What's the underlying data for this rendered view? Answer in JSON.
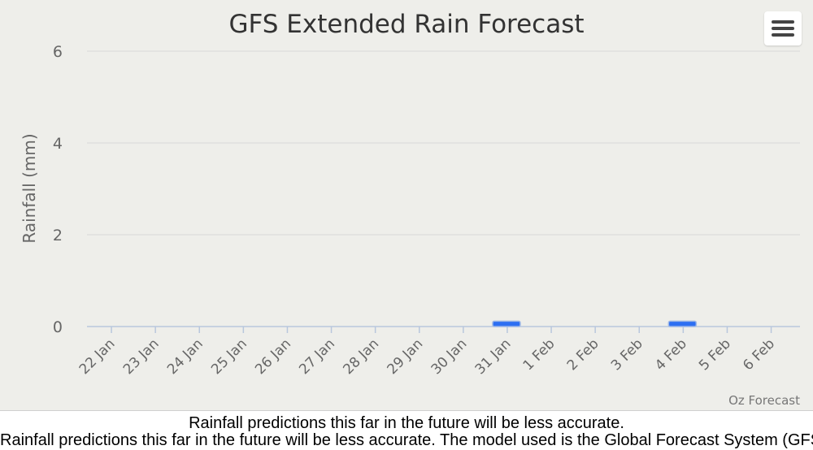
{
  "chart_data": {
    "type": "bar",
    "title": "GFS Extended Rain Forecast",
    "xlabel": "",
    "ylabel": "Rainfall (mm)",
    "ylim": [
      0,
      6
    ],
    "yticks": [
      0,
      2,
      4,
      6
    ],
    "categories": [
      "22 Jan",
      "23 Jan",
      "24 Jan",
      "25 Jan",
      "26 Jan",
      "27 Jan",
      "28 Jan",
      "29 Jan",
      "30 Jan",
      "31 Jan",
      "1 Feb",
      "2 Feb",
      "3 Feb",
      "4 Feb",
      "5 Feb",
      "6 Feb"
    ],
    "values": [
      0,
      0,
      0,
      0,
      0,
      0,
      0,
      0,
      0,
      0.1,
      0,
      0,
      0,
      0.1,
      0,
      0
    ],
    "grid": true,
    "bar_color": "#2d6ff2"
  },
  "credit": "Oz Forecast",
  "notes": {
    "line1": "Rainfall predictions this far in the future will be less accurate.",
    "line2": "Rainfall predictions this far in the future will be less accurate. The model used is the Global Forecast System (GFS)"
  },
  "menu": {
    "icon": "hamburger-menu-icon"
  }
}
